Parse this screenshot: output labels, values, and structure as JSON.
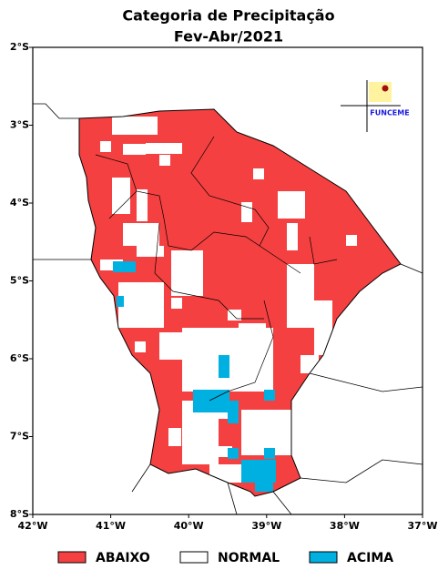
{
  "chart_data": {
    "type": "map",
    "title": "Categoria de Precipitação",
    "subtitle": "Fev-Abr/2021",
    "xlim": [
      -42,
      -37
    ],
    "ylim": [
      -8,
      -2
    ],
    "xticks": [
      {
        "value": -42,
        "label": "42°W"
      },
      {
        "value": -41,
        "label": "41°W"
      },
      {
        "value": -40,
        "label": "40°W"
      },
      {
        "value": -39,
        "label": "39°W"
      },
      {
        "value": -38,
        "label": "38°W"
      },
      {
        "value": -37,
        "label": "37°W"
      }
    ],
    "yticks": [
      {
        "value": -2,
        "label": "2°S"
      },
      {
        "value": -3,
        "label": "3°S"
      },
      {
        "value": -4,
        "label": "4°S"
      },
      {
        "value": -5,
        "label": "5°S"
      },
      {
        "value": -6,
        "label": "6°S"
      },
      {
        "value": -7,
        "label": "7°S"
      },
      {
        "value": -8,
        "label": "8°S"
      }
    ],
    "legend": [
      {
        "name": "ABAIXO",
        "color": "#f44040"
      },
      {
        "name": "NORMAL",
        "color": "#ffffff"
      },
      {
        "name": "ACIMA",
        "color": "#00b0e0"
      }
    ],
    "logo": "FUNCEME"
  }
}
